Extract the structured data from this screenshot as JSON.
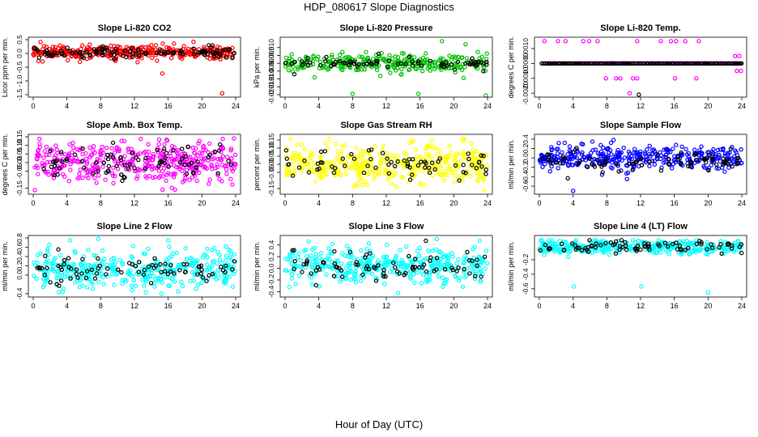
{
  "figure": {
    "title": "HDP_080617  Slope Diagnostics",
    "xlabel": "Hour of Day (UTC)",
    "x_ticks": [
      0,
      4,
      8,
      12,
      16,
      20,
      24
    ]
  },
  "chart_data": [
    {
      "type": "scatter",
      "title": "Slope Li-820 CO2",
      "ylabel": "Licor ppm per min.",
      "xlim": [
        0,
        24
      ],
      "ylim": [
        -1.5,
        0.5
      ],
      "y_ticks": [
        "-1.5",
        "-1.0",
        "-0.5",
        "0.0",
        "0.5"
      ],
      "y_tick_values": [
        -1.5,
        -1.0,
        -0.5,
        0.0,
        0.5
      ],
      "series": [
        {
          "color": "#ff0000",
          "count": 340,
          "mean": 0.05,
          "spread": 0.13,
          "outliers": [
            [
              15.3,
              -0.73
            ],
            [
              22.4,
              -1.45
            ],
            [
              0.6,
              -0.28
            ],
            [
              4.1,
              -0.25
            ],
            [
              19.0,
              0.42
            ]
          ]
        },
        {
          "color": "#000000",
          "count": 110,
          "mean": 0.02,
          "spread": 0.1,
          "outliers": []
        }
      ]
    },
    {
      "type": "scatter",
      "title": "Slope Li-820 Pressure",
      "ylabel": "kPa per min.",
      "xlim": [
        0,
        24
      ],
      "ylim": [
        -0.02,
        0.015
      ],
      "y_ticks": [
        "-0.020",
        "-0.015",
        "-0.010",
        "-0.005",
        "0.000",
        "0.005",
        "0.010"
      ],
      "y_tick_values": [
        -0.02,
        -0.015,
        -0.01,
        -0.005,
        0.0,
        0.005,
        0.01
      ],
      "series": [
        {
          "color": "#00c000",
          "count": 300,
          "mean": 0.0,
          "spread": 0.0028,
          "outliers": [
            [
              8.0,
              -0.0195
            ],
            [
              15.8,
              -0.0195
            ],
            [
              23.8,
              -0.0215
            ],
            [
              18.6,
              0.014
            ],
            [
              21.4,
              0.012
            ],
            [
              3.5,
              -0.009
            ],
            [
              11.3,
              -0.008
            ]
          ]
        },
        {
          "color": "#000000",
          "count": 70,
          "mean": 0.0,
          "spread": 0.0012,
          "outliers": [
            [
              1.1,
              -0.007
            ],
            [
              4.9,
              0.004
            ],
            [
              11.1,
              0.006
            ],
            [
              14.7,
              0.004
            ],
            [
              20.1,
              -0.004
            ],
            [
              23.5,
              -0.005
            ]
          ]
        }
      ]
    },
    {
      "type": "scatter",
      "title": "Slope Li-820 Temp.",
      "ylabel": "degrees C per min.",
      "xlim": [
        0,
        24
      ],
      "ylim": [
        -0.0021,
        0.0016
      ],
      "y_ticks": [
        "-0.0020",
        "-0.0010",
        "0.0000",
        "0.0010"
      ],
      "y_tick_values": [
        -0.002,
        -0.001,
        0.0,
        0.001
      ],
      "series": [
        {
          "color": "#ff00ff",
          "count": 120,
          "mean": 0.0,
          "spread": 0.0,
          "line": true,
          "outliers": [
            [
              0.6,
              0.0015
            ],
            [
              2.2,
              0.0015
            ],
            [
              3.1,
              0.0015
            ],
            [
              5.2,
              0.0015
            ],
            [
              5.9,
              0.0015
            ],
            [
              6.9,
              0.0015
            ],
            [
              11.6,
              0.0015
            ],
            [
              14.4,
              0.0015
            ],
            [
              15.6,
              0.0015
            ],
            [
              16.2,
              0.0015
            ],
            [
              17.3,
              0.0015
            ],
            [
              18.9,
              0.0015
            ],
            [
              7.9,
              -0.001
            ],
            [
              9.1,
              -0.001
            ],
            [
              9.6,
              -0.001
            ],
            [
              11.1,
              -0.001
            ],
            [
              11.6,
              -0.001
            ],
            [
              16.1,
              -0.001
            ],
            [
              18.6,
              -0.001
            ],
            [
              10.7,
              -0.002
            ],
            [
              23.2,
              0.0005
            ],
            [
              23.7,
              0.0005
            ],
            [
              23.4,
              -0.0005
            ],
            [
              23.9,
              -0.0005
            ]
          ]
        },
        {
          "color": "#000000",
          "count": 60,
          "mean": 0.0,
          "spread": 0.0,
          "line": true,
          "outliers": [
            [
              11.8,
              -0.0021
            ]
          ]
        }
      ]
    },
    {
      "type": "scatter",
      "title": "Slope Amb. Box Temp.",
      "ylabel": "degrees C per min.",
      "xlim": [
        0,
        24
      ],
      "ylim": [
        -0.17,
        0.15
      ],
      "y_ticks": [
        "-0.15",
        "-0.05",
        "0.00",
        "0.05",
        "0.10",
        "0.15"
      ],
      "y_tick_values": [
        -0.15,
        -0.05,
        0.0,
        0.05,
        0.1,
        0.15
      ],
      "series": [
        {
          "color": "#ff00ff",
          "count": 420,
          "mean": 0.0,
          "spread": 0.055,
          "outliers": [
            [
              0.2,
              -0.16
            ],
            [
              23.8,
              0.14
            ],
            [
              9.5,
              -0.12
            ]
          ]
        },
        {
          "color": "#000000",
          "count": 80,
          "mean": 0.0,
          "spread": 0.04,
          "outliers": []
        }
      ]
    },
    {
      "type": "scatter",
      "title": "Slope Gas Stream RH",
      "ylabel": "percent per min.",
      "xlim": [
        0,
        24
      ],
      "ylim": [
        -0.17,
        0.17
      ],
      "y_ticks": [
        "-0.15",
        "-0.05",
        "0.00",
        "0.05",
        "0.10",
        "0.15"
      ],
      "y_tick_values": [
        -0.15,
        -0.05,
        0.0,
        0.05,
        0.1,
        0.15
      ],
      "series": [
        {
          "color": "#ffff00",
          "count": 420,
          "mean": 0.0,
          "spread": 0.06,
          "outliers": [
            [
              23.6,
              -0.16
            ],
            [
              17.4,
              0.15
            ]
          ]
        },
        {
          "color": "#000000",
          "count": 70,
          "mean": 0.0,
          "spread": 0.05,
          "outliers": []
        }
      ]
    },
    {
      "type": "scatter",
      "title": "Slope Sample Flow",
      "ylabel": "ml/min per min.",
      "xlim": [
        0,
        24
      ],
      "ylim": [
        -0.72,
        0.45
      ],
      "y_ticks": [
        "-0.6",
        "-0.4",
        "-0.2",
        "0.0",
        "0.2",
        "0.4"
      ],
      "y_tick_values": [
        -0.6,
        -0.4,
        -0.2,
        0.0,
        0.2,
        0.4
      ],
      "series": [
        {
          "color": "#0000ff",
          "count": 360,
          "mean": 0.0,
          "spread": 0.12,
          "outliers": [
            [
              4.0,
              -0.7
            ],
            [
              10.4,
              -0.45
            ],
            [
              5.0,
              0.3
            ],
            [
              8.8,
              0.38
            ],
            [
              3.0,
              0.32
            ]
          ]
        },
        {
          "color": "#000000",
          "count": 80,
          "mean": -0.08,
          "spread": 0.1,
          "outliers": []
        }
      ]
    },
    {
      "type": "scatter",
      "title": "Slope Line 2 Flow",
      "ylabel": "ml/min per min.",
      "xlim": [
        0,
        24
      ],
      "ylim": [
        -0.42,
        0.8
      ],
      "y_ticks": [
        "-0.4",
        "0.0",
        "0.2",
        "0.4",
        "0.6",
        "0.8"
      ],
      "y_tick_values": [
        -0.4,
        0.0,
        0.2,
        0.4,
        0.6,
        0.8
      ],
      "series": [
        {
          "color": "#00ffff",
          "count": 380,
          "mean": 0.12,
          "spread": 0.2,
          "outliers": [
            [
              7.7,
              0.78
            ],
            [
              15.2,
              -0.4
            ],
            [
              16.0,
              0.75
            ]
          ]
        },
        {
          "color": "#000000",
          "count": 80,
          "mean": 0.12,
          "spread": 0.12,
          "outliers": []
        }
      ]
    },
    {
      "type": "scatter",
      "title": "Slope Line 3 Flow",
      "ylabel": "ml/min per min.",
      "xlim": [
        0,
        24
      ],
      "ylim": [
        -0.45,
        0.52
      ],
      "y_ticks": [
        "-0.4",
        "-0.2",
        "0.0",
        "0.2",
        "0.4"
      ],
      "y_tick_values": [
        -0.4,
        -0.2,
        0.0,
        0.2,
        0.4
      ],
      "series": [
        {
          "color": "#00ffff",
          "count": 380,
          "mean": 0.05,
          "spread": 0.15,
          "outliers": [
            [
              18.0,
              0.5
            ],
            [
              13.4,
              -0.42
            ],
            [
              0.5,
              -0.32
            ]
          ]
        },
        {
          "color": "#000000",
          "count": 80,
          "mean": 0.05,
          "spread": 0.14,
          "outliers": []
        }
      ]
    },
    {
      "type": "scatter",
      "title": "Slope Line 4 (LT) Flow",
      "ylabel": "ml/min per min.",
      "xlim": [
        0,
        24
      ],
      "ylim": [
        -0.68,
        0.1
      ],
      "y_ticks": [
        "-0.6",
        "-0.4",
        "-0.2"
      ],
      "y_tick_values": [
        -0.6,
        -0.4,
        -0.2
      ],
      "series": [
        {
          "color": "#00ffff",
          "count": 330,
          "mean": -0.02,
          "spread": 0.05,
          "outliers": [
            [
              4.1,
              -0.57
            ],
            [
              12.1,
              -0.57
            ],
            [
              20.0,
              -0.65
            ]
          ]
        },
        {
          "color": "#000000",
          "count": 80,
          "mean": -0.02,
          "spread": 0.04,
          "outliers": []
        }
      ]
    }
  ]
}
